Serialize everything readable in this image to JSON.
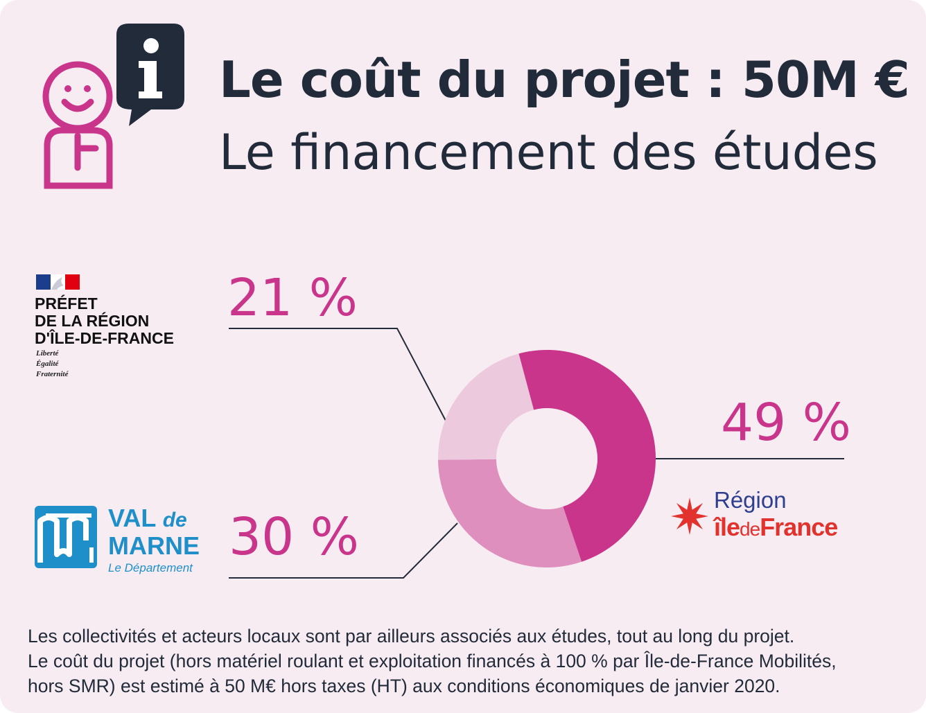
{
  "header": {
    "title": "Le coût du projet : 50M €",
    "subtitle": "Le financement des études"
  },
  "icons": {
    "person": "smiling-person-icon",
    "info": "info-speech-bubble-icon"
  },
  "colors": {
    "background": "#f8ecf3",
    "text_dark": "#222b39",
    "magenta": "#c8358a",
    "segment_49": "#c8358a",
    "segment_30": "#df8fbd",
    "segment_21": "#edc9de"
  },
  "chart_data": {
    "type": "pie",
    "title": "Le financement des études",
    "labels": [
      "21 %",
      "49 %",
      "30 %"
    ],
    "values": [
      21,
      49,
      30
    ],
    "funders": [
      "Préfet de la Région d'Île-de-France",
      "Région Île-de-France",
      "Val de Marne"
    ]
  },
  "logos": {
    "prefet": {
      "lines": [
        "PRÉFET",
        "DE LA RÉGION",
        "D'ÎLE-DE-FRANCE"
      ],
      "motto": [
        "Liberté",
        "Égalité",
        "Fraternité"
      ]
    },
    "valdemarne": {
      "val": "VAL",
      "de": "de",
      "marne": "MARNE",
      "sub": "Le Département"
    },
    "region": {
      "line1": "Région",
      "ile": "île",
      "de": "de",
      "france": "France"
    }
  },
  "footer": {
    "lines": [
      "Les collectivités et acteurs locaux sont par ailleurs associés aux études, tout au long du projet.",
      "Le coût du projet (hors matériel roulant et exploitation financés à 100 % par Île-de-France Mobilités,",
      "hors SMR) est estimé à 50 M€ hors taxes (HT) aux conditions économiques de janvier 2020."
    ]
  }
}
